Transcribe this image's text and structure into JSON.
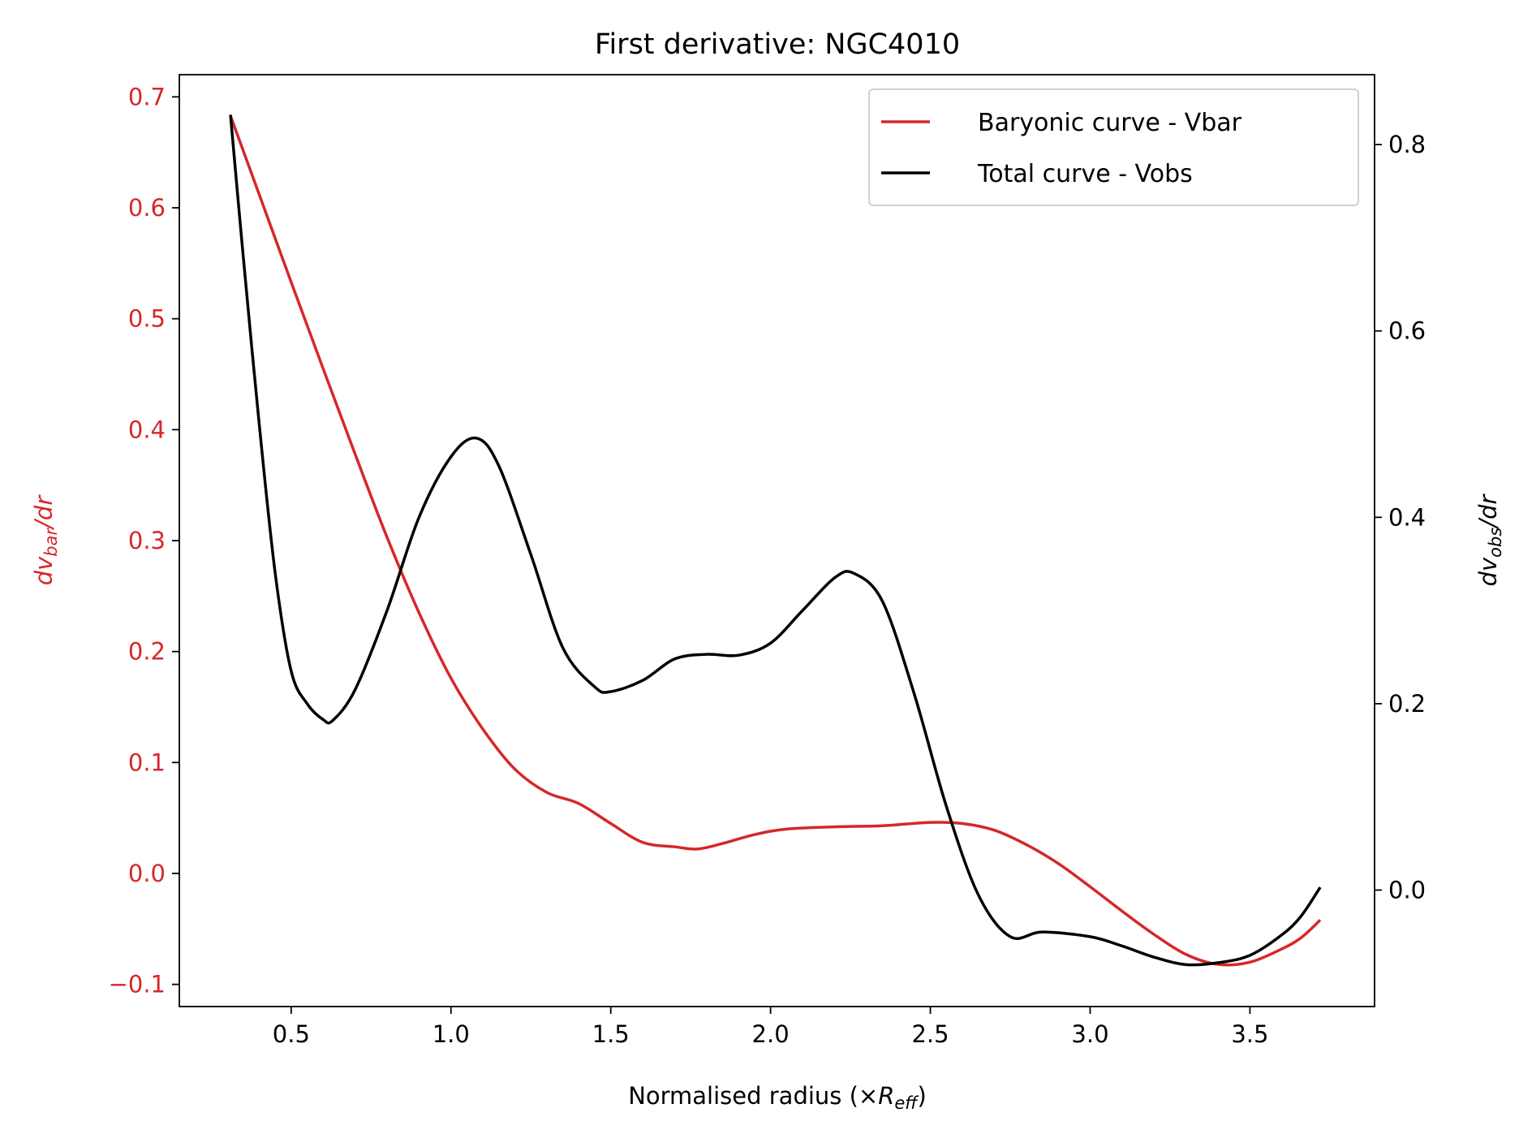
{
  "chart_data": {
    "type": "line",
    "title": "First derivative: NGC4010",
    "xlabel": {
      "prefix": "Normalised radius (×",
      "var": "R",
      "sub": "eff",
      "suffix": ")"
    },
    "ylabel_left": {
      "d": "dv",
      "sub": "bar",
      "rest": "/dr"
    },
    "ylabel_right": {
      "d": "dv",
      "sub": "obs",
      "rest": "/dr"
    },
    "xlim": [
      0.15,
      3.89
    ],
    "ylim_left": [
      -0.12,
      0.72
    ],
    "ylim_right": [
      -0.125,
      0.875
    ],
    "x_ticks": [
      0.5,
      1.0,
      1.5,
      2.0,
      2.5,
      3.0,
      3.5
    ],
    "x_tick_labels": [
      "0.5",
      "1.0",
      "1.5",
      "2.0",
      "2.5",
      "3.0",
      "3.5"
    ],
    "y_left_ticks": [
      -0.1,
      0.0,
      0.1,
      0.2,
      0.3,
      0.4,
      0.5,
      0.6,
      0.7
    ],
    "y_left_tick_labels": [
      "−0.1",
      "0.0",
      "0.1",
      "0.2",
      "0.3",
      "0.4",
      "0.5",
      "0.6",
      "0.7"
    ],
    "y_right_ticks": [
      0.0,
      0.2,
      0.4,
      0.6,
      0.8
    ],
    "y_right_tick_labels": [
      "0.0",
      "0.2",
      "0.4",
      "0.6",
      "0.8"
    ],
    "legend_position": "top-right",
    "grid": false,
    "colors": {
      "bar": "#d62728",
      "obs": "#000000"
    },
    "series": [
      {
        "name": "Baryonic curve - Vbar",
        "axis": "left",
        "color": "#d62728",
        "x": [
          0.31,
          0.4,
          0.5,
          0.6,
          0.7,
          0.8,
          0.9,
          1.0,
          1.1,
          1.2,
          1.3,
          1.4,
          1.5,
          1.6,
          1.7,
          1.77,
          1.85,
          1.95,
          2.05,
          2.2,
          2.35,
          2.5,
          2.6,
          2.7,
          2.8,
          2.9,
          3.0,
          3.1,
          3.2,
          3.3,
          3.4,
          3.5,
          3.6,
          3.66,
          3.72
        ],
        "y": [
          0.683,
          0.612,
          0.533,
          0.455,
          0.378,
          0.303,
          0.235,
          0.176,
          0.13,
          0.094,
          0.073,
          0.063,
          0.045,
          0.028,
          0.024,
          0.022,
          0.027,
          0.035,
          0.04,
          0.042,
          0.043,
          0.046,
          0.045,
          0.039,
          0.026,
          0.009,
          -0.012,
          -0.034,
          -0.055,
          -0.073,
          -0.082,
          -0.08,
          -0.068,
          -0.058,
          -0.042
        ]
      },
      {
        "name": "Total curve - Vobs",
        "axis": "right",
        "color": "#000000",
        "x": [
          0.31,
          0.35,
          0.4,
          0.45,
          0.5,
          0.55,
          0.6,
          0.63,
          0.7,
          0.8,
          0.9,
          1.0,
          1.08,
          1.15,
          1.25,
          1.35,
          1.45,
          1.5,
          1.6,
          1.7,
          1.8,
          1.9,
          2.0,
          2.1,
          2.2,
          2.26,
          2.35,
          2.45,
          2.55,
          2.65,
          2.75,
          2.85,
          3.0,
          3.1,
          3.2,
          3.3,
          3.4,
          3.5,
          3.6,
          3.66,
          3.72
        ],
        "y": [
          0.832,
          0.68,
          0.5,
          0.34,
          0.235,
          0.2,
          0.183,
          0.182,
          0.215,
          0.3,
          0.4,
          0.465,
          0.485,
          0.455,
          0.36,
          0.26,
          0.218,
          0.213,
          0.225,
          0.248,
          0.253,
          0.252,
          0.265,
          0.3,
          0.335,
          0.34,
          0.31,
          0.21,
          0.09,
          -0.005,
          -0.05,
          -0.045,
          -0.05,
          -0.06,
          -0.072,
          -0.08,
          -0.078,
          -0.07,
          -0.048,
          -0.028,
          0.003
        ]
      }
    ]
  }
}
